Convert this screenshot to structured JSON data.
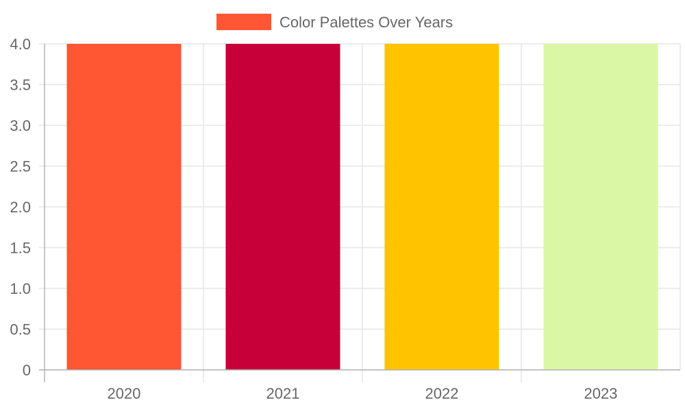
{
  "chart_data": {
    "type": "bar",
    "categories": [
      "2020",
      "2021",
      "2022",
      "2023"
    ],
    "series": [
      {
        "name": "Color Palettes Over Years",
        "values": [
          4,
          4,
          4,
          4
        ]
      }
    ],
    "bar_colors": [
      "#FF5733",
      "#C70039",
      "#FFC300",
      "#DAF7A6"
    ],
    "ylim": [
      0,
      4
    ],
    "y_ticks": [
      "0",
      "0.5",
      "1.0",
      "1.5",
      "2.0",
      "2.5",
      "3.0",
      "3.5",
      "4.0"
    ],
    "grid": true,
    "legend_position": "top-center",
    "legend_swatch_color": "#FF5733"
  }
}
